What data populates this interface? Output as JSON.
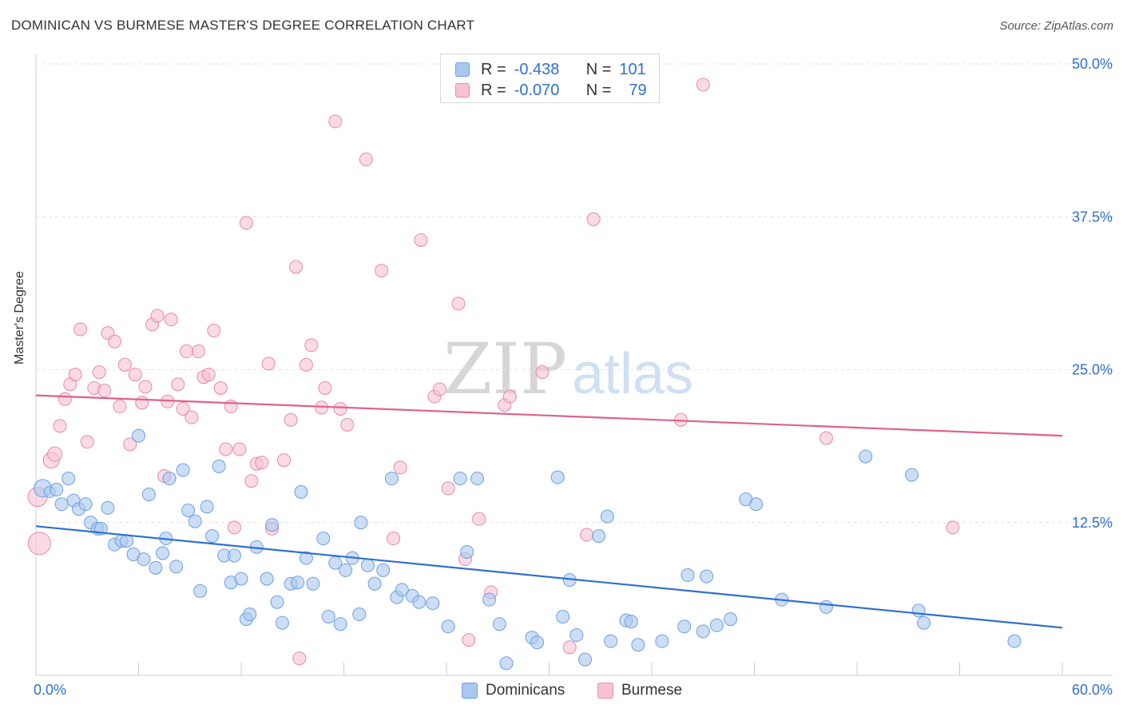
{
  "title": "DOMINICAN VS BURMESE MASTER'S DEGREE CORRELATION CHART",
  "source": "Source: ZipAtlas.com",
  "watermark": {
    "zip": "ZIP",
    "atlas": "atlas"
  },
  "legend": {
    "rows": [
      {
        "r_label": "R =",
        "r_value": "-0.438",
        "n_label": "N =",
        "n_value": "101",
        "color": "#a8c8f0",
        "border": "#6e9fe0"
      },
      {
        "r_label": "R =",
        "r_value": "-0.070",
        "n_label": "N =",
        "n_value": "79",
        "color": "#f8c2d4",
        "border": "#e48aaa"
      }
    ]
  },
  "colors": {
    "dominican_fill": "#a8c8f0",
    "dominican_stroke": "#6e9fe0",
    "dominican_line": "#2f6fcf",
    "burmese_fill": "#f8c2d4",
    "burmese_stroke": "#e48aaa",
    "burmese_line": "#e0608a",
    "tick_label": "#2f6fcf"
  },
  "chart_data": {
    "type": "scatter",
    "xlabel": "",
    "ylabel": "Master's Degree",
    "xlim": [
      0,
      60
    ],
    "ylim": [
      0,
      50
    ],
    "x_tick_labels": [
      "0.0%",
      "60.0%"
    ],
    "y_ticks": [
      12.5,
      25.0,
      37.5,
      50.0
    ],
    "y_tick_labels": [
      "12.5%",
      "25.0%",
      "37.5%",
      "50.0%"
    ],
    "grid": true,
    "legend_position": "bottom",
    "series": [
      {
        "name": "Dominicans",
        "trend": [
          [
            0,
            12.2
          ],
          [
            60,
            3.9
          ]
        ],
        "points": [
          [
            0.4,
            15.3,
            11
          ],
          [
            0.8,
            15.0,
            7
          ],
          [
            1.2,
            15.2,
            8
          ],
          [
            1.5,
            14.0,
            8
          ],
          [
            1.9,
            16.1,
            8
          ],
          [
            2.2,
            14.3,
            8
          ],
          [
            2.5,
            13.6,
            8
          ],
          [
            2.9,
            14.0,
            8
          ],
          [
            3.2,
            12.5,
            8
          ],
          [
            3.6,
            12.0,
            8
          ],
          [
            3.8,
            12.0,
            8
          ],
          [
            4.2,
            13.7,
            8
          ],
          [
            4.6,
            10.7,
            8
          ],
          [
            5.0,
            11.0,
            8
          ],
          [
            5.3,
            11.0,
            8
          ],
          [
            5.7,
            9.9,
            8
          ],
          [
            6.0,
            19.6,
            8
          ],
          [
            6.3,
            9.5,
            8
          ],
          [
            6.6,
            14.8,
            8
          ],
          [
            7.0,
            8.8,
            8
          ],
          [
            7.4,
            10.0,
            8
          ],
          [
            7.6,
            11.2,
            8
          ],
          [
            7.8,
            16.1,
            8
          ],
          [
            8.2,
            8.9,
            8
          ],
          [
            8.6,
            16.8,
            8
          ],
          [
            8.9,
            13.5,
            8
          ],
          [
            9.3,
            12.6,
            8
          ],
          [
            9.6,
            6.9,
            8
          ],
          [
            10.0,
            13.8,
            8
          ],
          [
            10.3,
            11.4,
            8
          ],
          [
            10.7,
            17.1,
            8
          ],
          [
            11.0,
            9.8,
            8
          ],
          [
            11.4,
            7.6,
            8
          ],
          [
            11.6,
            9.8,
            8
          ],
          [
            12.0,
            7.9,
            8
          ],
          [
            12.3,
            4.6,
            8
          ],
          [
            12.5,
            5.0,
            8
          ],
          [
            12.9,
            10.5,
            8
          ],
          [
            13.5,
            7.9,
            8
          ],
          [
            13.8,
            12.3,
            8
          ],
          [
            14.1,
            6.0,
            8
          ],
          [
            14.4,
            4.3,
            8
          ],
          [
            14.9,
            7.5,
            8
          ],
          [
            15.3,
            7.6,
            8
          ],
          [
            15.5,
            15.0,
            8
          ],
          [
            15.8,
            9.6,
            8
          ],
          [
            16.2,
            7.5,
            8
          ],
          [
            16.8,
            11.2,
            8
          ],
          [
            17.1,
            4.8,
            8
          ],
          [
            17.5,
            9.2,
            8
          ],
          [
            17.8,
            4.2,
            8
          ],
          [
            18.1,
            8.6,
            8
          ],
          [
            18.5,
            9.6,
            8
          ],
          [
            18.9,
            5.0,
            8
          ],
          [
            19.0,
            12.5,
            8
          ],
          [
            19.4,
            9.0,
            8
          ],
          [
            19.8,
            7.5,
            8
          ],
          [
            20.3,
            8.6,
            8
          ],
          [
            20.8,
            16.1,
            8
          ],
          [
            21.1,
            6.4,
            8
          ],
          [
            21.4,
            7.0,
            8
          ],
          [
            22.0,
            6.5,
            8
          ],
          [
            22.4,
            6.0,
            8
          ],
          [
            23.2,
            5.9,
            8
          ],
          [
            24.1,
            4.0,
            8
          ],
          [
            24.8,
            16.1,
            8
          ],
          [
            25.2,
            10.1,
            8
          ],
          [
            25.8,
            16.1,
            8
          ],
          [
            26.5,
            6.2,
            8
          ],
          [
            27.1,
            4.2,
            8
          ],
          [
            27.5,
            1.0,
            8
          ],
          [
            29.0,
            3.1,
            8
          ],
          [
            29.3,
            2.7,
            8
          ],
          [
            30.5,
            16.2,
            8
          ],
          [
            30.8,
            4.8,
            8
          ],
          [
            31.2,
            7.8,
            8
          ],
          [
            31.6,
            3.3,
            8
          ],
          [
            32.1,
            1.3,
            8
          ],
          [
            32.9,
            11.4,
            8
          ],
          [
            33.4,
            13.0,
            8
          ],
          [
            33.6,
            2.8,
            8
          ],
          [
            34.5,
            4.5,
            8
          ],
          [
            34.8,
            4.4,
            8
          ],
          [
            35.2,
            2.5,
            8
          ],
          [
            36.6,
            2.8,
            8
          ],
          [
            37.9,
            4.0,
            8
          ],
          [
            38.1,
            8.2,
            8
          ],
          [
            39.0,
            3.6,
            8
          ],
          [
            39.2,
            8.1,
            8
          ],
          [
            39.8,
            4.1,
            8
          ],
          [
            40.6,
            4.6,
            8
          ],
          [
            41.5,
            14.4,
            8
          ],
          [
            42.1,
            14.0,
            8
          ],
          [
            43.6,
            6.2,
            8
          ],
          [
            46.2,
            5.6,
            8
          ],
          [
            48.5,
            17.9,
            8
          ],
          [
            51.2,
            16.4,
            8
          ],
          [
            51.6,
            5.3,
            8
          ],
          [
            51.9,
            4.3,
            8
          ],
          [
            57.2,
            2.8,
            8
          ]
        ]
      },
      {
        "name": "Burmese",
        "trend": [
          [
            0,
            22.9
          ],
          [
            60,
            19.6
          ]
        ],
        "points": [
          [
            0.1,
            14.6,
            12
          ],
          [
            0.2,
            10.8,
            14
          ],
          [
            0.9,
            17.6,
            10
          ],
          [
            1.1,
            18.1,
            9
          ],
          [
            1.4,
            20.4,
            8
          ],
          [
            1.7,
            22.6,
            8
          ],
          [
            2.0,
            23.8,
            8
          ],
          [
            2.3,
            24.6,
            8
          ],
          [
            2.6,
            28.3,
            8
          ],
          [
            3.0,
            19.1,
            8
          ],
          [
            3.4,
            23.5,
            8
          ],
          [
            3.7,
            24.8,
            8
          ],
          [
            4.0,
            23.3,
            8
          ],
          [
            4.2,
            28.0,
            8
          ],
          [
            4.6,
            27.3,
            8
          ],
          [
            4.9,
            22.0,
            8
          ],
          [
            5.2,
            25.4,
            8
          ],
          [
            5.5,
            18.9,
            8
          ],
          [
            5.8,
            24.6,
            8
          ],
          [
            6.2,
            22.3,
            8
          ],
          [
            6.4,
            23.6,
            8
          ],
          [
            6.8,
            28.7,
            8
          ],
          [
            7.1,
            29.4,
            8
          ],
          [
            7.5,
            16.3,
            8
          ],
          [
            7.7,
            22.4,
            8
          ],
          [
            7.9,
            29.1,
            8
          ],
          [
            8.3,
            23.8,
            8
          ],
          [
            8.6,
            21.8,
            8
          ],
          [
            8.8,
            26.5,
            8
          ],
          [
            9.1,
            21.1,
            8
          ],
          [
            9.5,
            26.5,
            8
          ],
          [
            9.8,
            24.4,
            8
          ],
          [
            10.1,
            24.6,
            8
          ],
          [
            10.4,
            28.2,
            8
          ],
          [
            10.8,
            23.5,
            8
          ],
          [
            11.1,
            18.5,
            8
          ],
          [
            11.4,
            22.0,
            8
          ],
          [
            11.6,
            12.1,
            8
          ],
          [
            11.9,
            18.5,
            8
          ],
          [
            12.3,
            37.0,
            8
          ],
          [
            12.6,
            15.9,
            8
          ],
          [
            12.9,
            17.3,
            8
          ],
          [
            13.2,
            17.4,
            8
          ],
          [
            13.6,
            25.5,
            8
          ],
          [
            13.8,
            12.0,
            8
          ],
          [
            14.5,
            17.6,
            8
          ],
          [
            14.9,
            20.9,
            8
          ],
          [
            15.2,
            33.4,
            8
          ],
          [
            15.4,
            1.4,
            8
          ],
          [
            15.8,
            25.4,
            8
          ],
          [
            16.1,
            27.0,
            8
          ],
          [
            16.7,
            21.9,
            8
          ],
          [
            16.9,
            23.5,
            8
          ],
          [
            17.5,
            45.3,
            8
          ],
          [
            17.8,
            21.8,
            8
          ],
          [
            18.2,
            20.5,
            8
          ],
          [
            19.3,
            42.2,
            8
          ],
          [
            20.2,
            33.1,
            8
          ],
          [
            20.9,
            11.2,
            8
          ],
          [
            21.3,
            17.0,
            8
          ],
          [
            22.5,
            35.6,
            8
          ],
          [
            23.3,
            22.8,
            8
          ],
          [
            23.6,
            23.4,
            8
          ],
          [
            24.1,
            15.3,
            8
          ],
          [
            24.7,
            30.4,
            8
          ],
          [
            25.1,
            9.5,
            8
          ],
          [
            25.3,
            2.9,
            8
          ],
          [
            25.9,
            12.8,
            8
          ],
          [
            26.6,
            6.8,
            8
          ],
          [
            27.4,
            22.1,
            8
          ],
          [
            27.7,
            22.8,
            8
          ],
          [
            29.6,
            24.8,
            8
          ],
          [
            31.2,
            2.3,
            8
          ],
          [
            32.2,
            11.5,
            8
          ],
          [
            32.6,
            37.3,
            8
          ],
          [
            37.7,
            20.9,
            8
          ],
          [
            39.0,
            48.3,
            8
          ],
          [
            46.2,
            19.4,
            8
          ],
          [
            53.6,
            12.1,
            8
          ]
        ]
      }
    ]
  }
}
